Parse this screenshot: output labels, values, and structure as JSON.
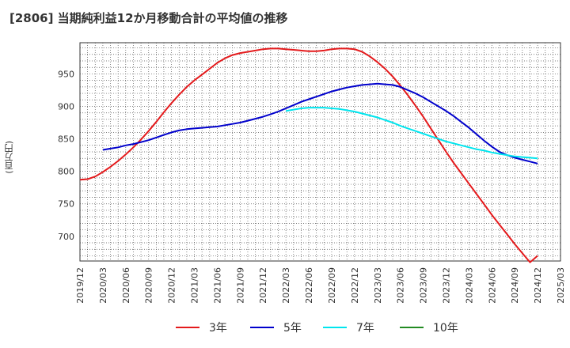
{
  "title": "[2806]  当期純利益12か月移動合計の平均値の推移",
  "unit_label": "(百万円)",
  "chart_data": {
    "type": "line",
    "title": "[2806]  当期純利益12か月移動合計の平均値の推移",
    "ylabel": "(百万円)",
    "xlabel": "",
    "ylim": [
      662,
      998
    ],
    "xlim": [
      "2019/12",
      "2025/03"
    ],
    "grid": true,
    "legend_position": "bottom",
    "x_ticks": [
      "2019/12",
      "2020/03",
      "2020/06",
      "2020/09",
      "2020/12",
      "2021/03",
      "2021/06",
      "2021/09",
      "2021/12",
      "2022/03",
      "2022/06",
      "2022/09",
      "2022/12",
      "2023/03",
      "2023/06",
      "2023/09",
      "2023/12",
      "2024/03",
      "2024/06",
      "2024/09",
      "2024/12",
      "2025/03"
    ],
    "y_ticks": [
      700,
      750,
      800,
      850,
      900,
      950
    ],
    "series": [
      {
        "name": "3年",
        "color": "#e41a1c",
        "points": [
          [
            "2019/12",
            787
          ],
          [
            "2020/01",
            788
          ],
          [
            "2020/02",
            792
          ],
          [
            "2020/03",
            799
          ],
          [
            "2020/04",
            807
          ],
          [
            "2020/05",
            816
          ],
          [
            "2020/06",
            826
          ],
          [
            "2020/07",
            837
          ],
          [
            "2020/08",
            849
          ],
          [
            "2020/09",
            862
          ],
          [
            "2020/10",
            876
          ],
          [
            "2020/11",
            891
          ],
          [
            "2020/12",
            905
          ],
          [
            "2021/01",
            918
          ],
          [
            "2021/02",
            930
          ],
          [
            "2021/03",
            940
          ],
          [
            "2021/04",
            949
          ],
          [
            "2021/05",
            958
          ],
          [
            "2021/06",
            967
          ],
          [
            "2021/07",
            974
          ],
          [
            "2021/08",
            979
          ],
          [
            "2021/09",
            982
          ],
          [
            "2021/10",
            984
          ],
          [
            "2021/11",
            986
          ],
          [
            "2021/12",
            988
          ],
          [
            "2022/01",
            989
          ],
          [
            "2022/02",
            989
          ],
          [
            "2022/03",
            988
          ],
          [
            "2022/04",
            987
          ],
          [
            "2022/05",
            986
          ],
          [
            "2022/06",
            985
          ],
          [
            "2022/07",
            985
          ],
          [
            "2022/08",
            986
          ],
          [
            "2022/09",
            988
          ],
          [
            "2022/10",
            989
          ],
          [
            "2022/11",
            989
          ],
          [
            "2022/12",
            988
          ],
          [
            "2023/01",
            984
          ],
          [
            "2023/02",
            977
          ],
          [
            "2023/03",
            968
          ],
          [
            "2023/04",
            958
          ],
          [
            "2023/05",
            946
          ],
          [
            "2023/06",
            932
          ],
          [
            "2023/07",
            917
          ],
          [
            "2023/08",
            901
          ],
          [
            "2023/09",
            884
          ],
          [
            "2023/10",
            866
          ],
          [
            "2023/11",
            848
          ],
          [
            "2023/12",
            830
          ],
          [
            "2024/01",
            813
          ],
          [
            "2024/02",
            797
          ],
          [
            "2024/03",
            781
          ],
          [
            "2024/04",
            765
          ],
          [
            "2024/05",
            749
          ],
          [
            "2024/06",
            733
          ],
          [
            "2024/07",
            718
          ],
          [
            "2024/08",
            703
          ],
          [
            "2024/09",
            688
          ],
          [
            "2024/10",
            674
          ],
          [
            "2024/11",
            660
          ],
          [
            "2024/12",
            670
          ]
        ]
      },
      {
        "name": "5年",
        "color": "#0000cc",
        "points": [
          [
            "2020/03",
            833
          ],
          [
            "2020/04",
            835
          ],
          [
            "2020/05",
            837
          ],
          [
            "2020/06",
            840
          ],
          [
            "2020/07",
            842
          ],
          [
            "2020/08",
            845
          ],
          [
            "2020/09",
            848
          ],
          [
            "2020/10",
            852
          ],
          [
            "2020/11",
            856
          ],
          [
            "2020/12",
            860
          ],
          [
            "2021/01",
            863
          ],
          [
            "2021/02",
            865
          ],
          [
            "2021/03",
            866
          ],
          [
            "2021/04",
            867
          ],
          [
            "2021/05",
            868
          ],
          [
            "2021/06",
            869
          ],
          [
            "2021/07",
            871
          ],
          [
            "2021/08",
            873
          ],
          [
            "2021/09",
            875
          ],
          [
            "2021/10",
            878
          ],
          [
            "2021/11",
            881
          ],
          [
            "2021/12",
            884
          ],
          [
            "2022/01",
            888
          ],
          [
            "2022/02",
            892
          ],
          [
            "2022/03",
            897
          ],
          [
            "2022/04",
            902
          ],
          [
            "2022/05",
            907
          ],
          [
            "2022/06",
            911
          ],
          [
            "2022/07",
            915
          ],
          [
            "2022/08",
            919
          ],
          [
            "2022/09",
            923
          ],
          [
            "2022/10",
            926
          ],
          [
            "2022/11",
            929
          ],
          [
            "2022/12",
            931
          ],
          [
            "2023/01",
            933
          ],
          [
            "2023/02",
            934
          ],
          [
            "2023/03",
            935
          ],
          [
            "2023/04",
            934
          ],
          [
            "2023/05",
            933
          ],
          [
            "2023/06",
            930
          ],
          [
            "2023/07",
            925
          ],
          [
            "2023/08",
            920
          ],
          [
            "2023/09",
            914
          ],
          [
            "2023/10",
            907
          ],
          [
            "2023/11",
            900
          ],
          [
            "2023/12",
            893
          ],
          [
            "2024/01",
            885
          ],
          [
            "2024/02",
            876
          ],
          [
            "2024/03",
            867
          ],
          [
            "2024/04",
            857
          ],
          [
            "2024/05",
            847
          ],
          [
            "2024/06",
            838
          ],
          [
            "2024/07",
            830
          ],
          [
            "2024/08",
            825
          ],
          [
            "2024/09",
            821
          ],
          [
            "2024/10",
            818
          ],
          [
            "2024/11",
            815
          ],
          [
            "2024/12",
            812
          ]
        ]
      },
      {
        "name": "7年",
        "color": "#00e5ee",
        "points": [
          [
            "2022/03",
            893
          ],
          [
            "2022/04",
            895
          ],
          [
            "2022/05",
            897
          ],
          [
            "2022/06",
            898
          ],
          [
            "2022/07",
            898
          ],
          [
            "2022/08",
            898
          ],
          [
            "2022/09",
            897
          ],
          [
            "2022/10",
            896
          ],
          [
            "2022/11",
            894
          ],
          [
            "2022/12",
            892
          ],
          [
            "2023/01",
            889
          ],
          [
            "2023/02",
            886
          ],
          [
            "2023/03",
            883
          ],
          [
            "2023/04",
            879
          ],
          [
            "2023/05",
            875
          ],
          [
            "2023/06",
            870
          ],
          [
            "2023/07",
            866
          ],
          [
            "2023/08",
            862
          ],
          [
            "2023/09",
            858
          ],
          [
            "2023/10",
            854
          ],
          [
            "2023/11",
            850
          ],
          [
            "2023/12",
            846
          ],
          [
            "2024/01",
            843
          ],
          [
            "2024/02",
            840
          ],
          [
            "2024/03",
            837
          ],
          [
            "2024/04",
            834
          ],
          [
            "2024/05",
            832
          ],
          [
            "2024/06",
            829
          ],
          [
            "2024/07",
            827
          ],
          [
            "2024/08",
            825
          ],
          [
            "2024/09",
            823
          ],
          [
            "2024/10",
            822
          ],
          [
            "2024/11",
            821
          ],
          [
            "2024/12",
            820
          ]
        ]
      },
      {
        "name": "10年",
        "color": "#228b22",
        "points": []
      }
    ]
  }
}
